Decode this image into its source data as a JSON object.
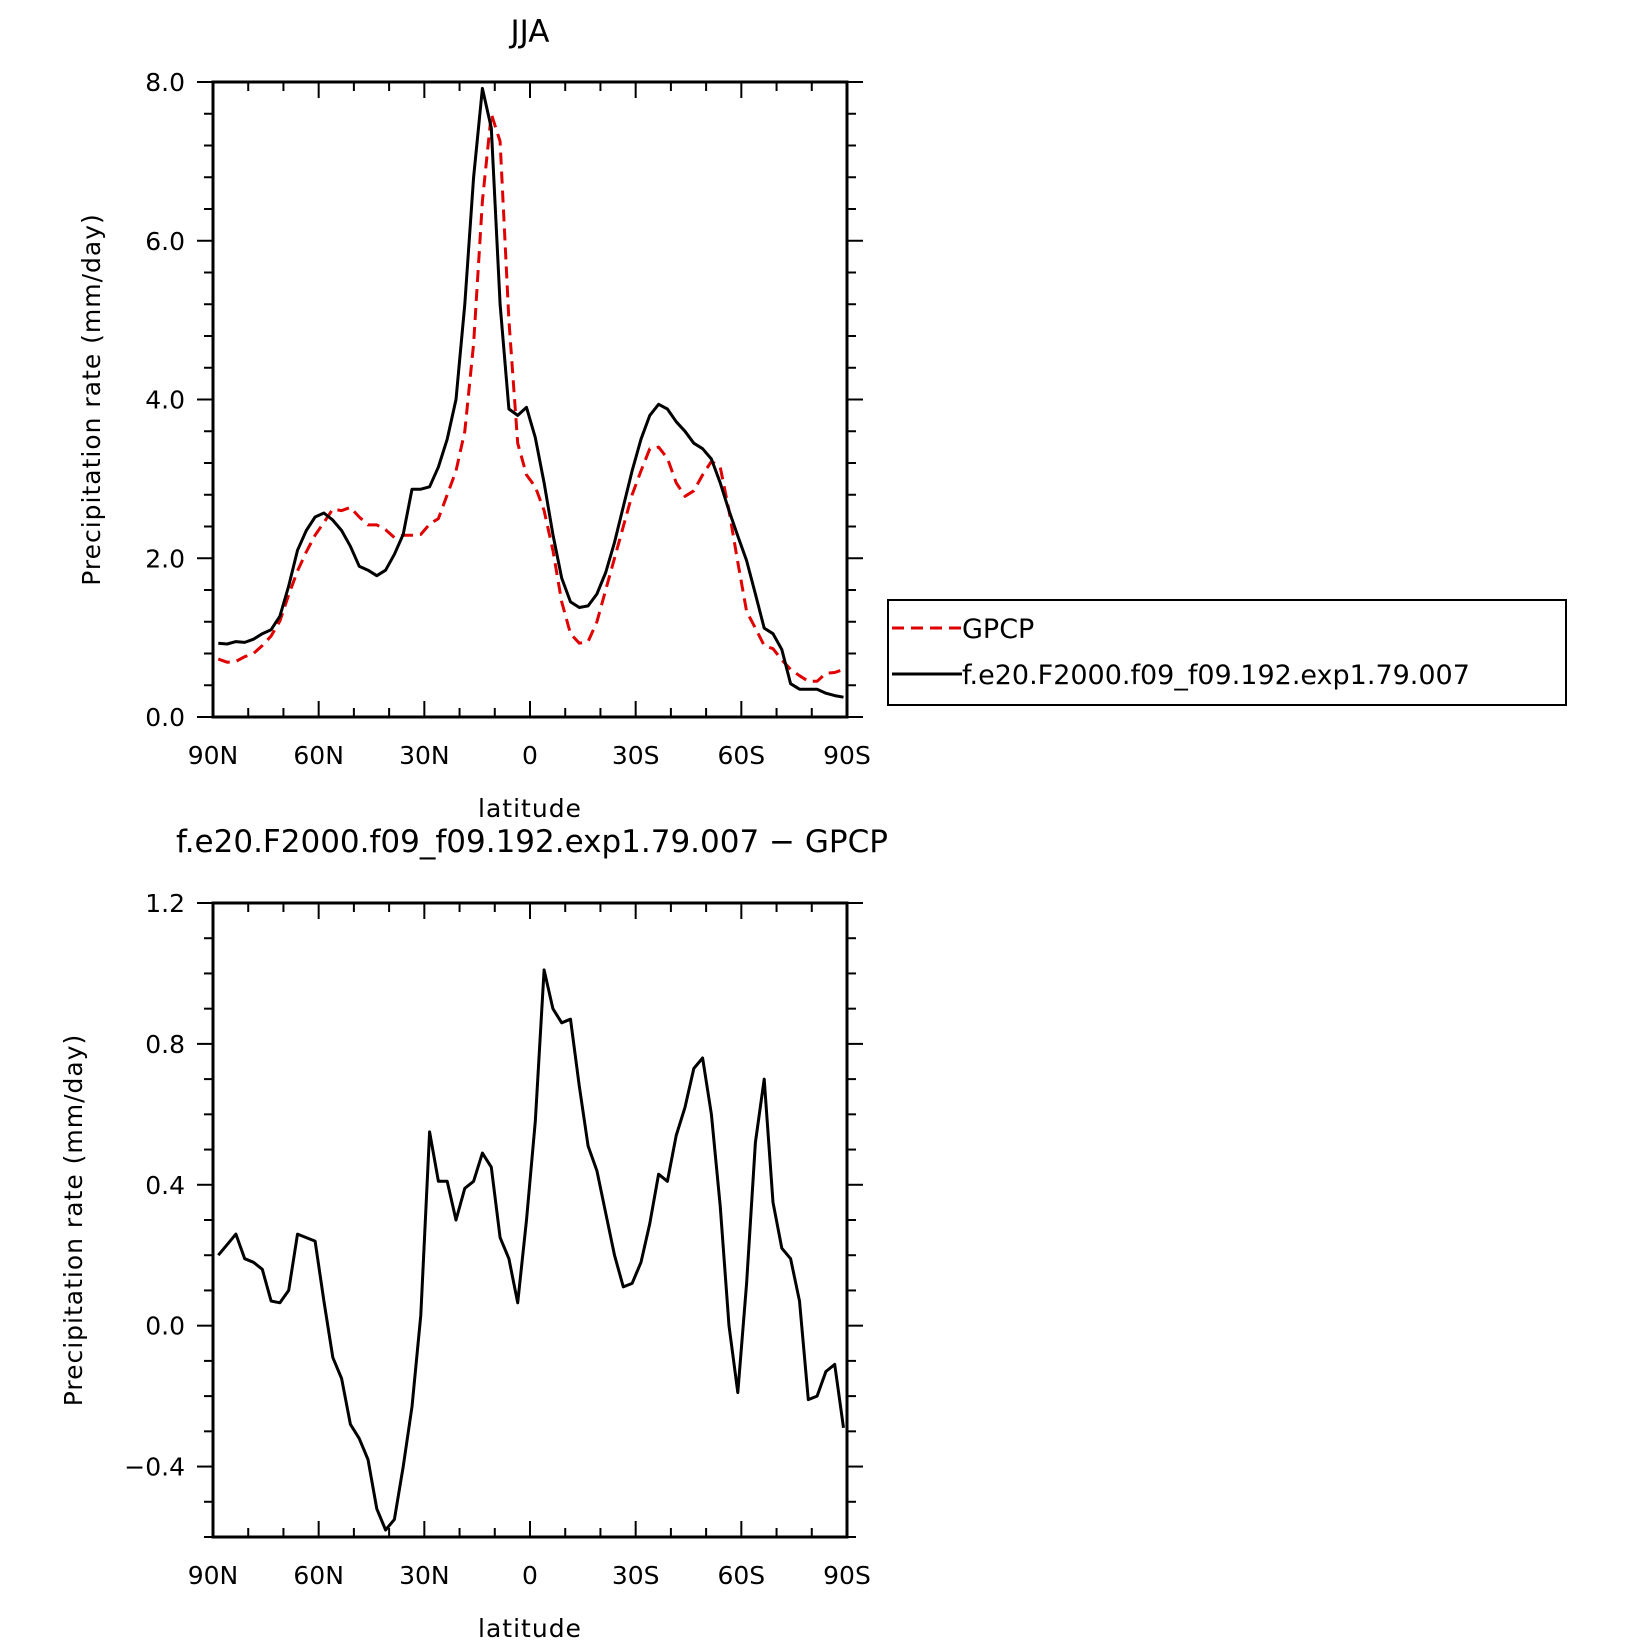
{
  "chart_data": [
    {
      "type": "line",
      "title": "JJA",
      "xlabel": "latitude",
      "ylabel": "Precipitation rate (mm/day)",
      "x_tick_labels": [
        "90N",
        "60N",
        "30N",
        "0",
        "30S",
        "60S",
        "90S"
      ],
      "y_tick_labels": [
        "0.0",
        "2.0",
        "4.0",
        "6.0",
        "8.0"
      ],
      "xlim": [
        90,
        -90
      ],
      "ylim": [
        0,
        8
      ],
      "legend_position": "right",
      "series": [
        {
          "name": "GPCP",
          "color": "#e00000",
          "dash": true,
          "x": [
            88.5,
            86,
            83.5,
            81,
            78.5,
            76,
            73.5,
            71,
            68.5,
            66,
            63.5,
            61,
            58.5,
            56,
            53.5,
            51,
            48.5,
            46,
            43.5,
            41,
            38.5,
            36,
            33.5,
            31,
            28.5,
            26,
            23.5,
            21,
            18.5,
            16,
            13.5,
            11,
            8.5,
            6,
            3.5,
            1,
            -1.5,
            -4,
            -6.5,
            -9,
            -11.5,
            -14,
            -16.5,
            -19,
            -21.5,
            -24,
            -26.5,
            -29,
            -31.5,
            -34,
            -36.5,
            -39,
            -41.5,
            -44,
            -46.5,
            -49,
            -51.5,
            -54,
            -56.5,
            -59,
            -61.5,
            -64,
            -66.5,
            -69,
            -71.5,
            -74,
            -76.5,
            -79,
            -81.5,
            -84,
            -86.5,
            -89
          ],
          "values": [
            0.73,
            0.69,
            0.7,
            0.76,
            0.8,
            0.9,
            1.02,
            1.21,
            1.54,
            1.84,
            2.08,
            2.29,
            2.45,
            2.62,
            2.6,
            2.64,
            2.52,
            2.42,
            2.42,
            2.36,
            2.26,
            2.29,
            2.29,
            2.3,
            2.43,
            2.5,
            2.8,
            3.1,
            3.6,
            4.7,
            6.5,
            7.6,
            7.25,
            5.0,
            3.45,
            3.05,
            2.9,
            2.6,
            2.1,
            1.45,
            1.05,
            0.93,
            0.95,
            1.2,
            1.6,
            2.0,
            2.4,
            2.8,
            3.1,
            3.38,
            3.4,
            3.26,
            2.95,
            2.78,
            2.85,
            3.05,
            3.22,
            3.15,
            2.6,
            1.95,
            1.33,
            1.12,
            0.9,
            0.86,
            0.72,
            0.6,
            0.52,
            0.45,
            0.45,
            0.55,
            0.56,
            0.6
          ]
        },
        {
          "name": "f.e20.F2000.f09_f09.192.exp1.79.007",
          "color": "#000000",
          "dash": false,
          "x": [
            88.5,
            86,
            83.5,
            81,
            78.5,
            76,
            73.5,
            71,
            68.5,
            66,
            63.5,
            61,
            58.5,
            56,
            53.5,
            51,
            48.5,
            46,
            43.5,
            41,
            38.5,
            36,
            33.5,
            31,
            28.5,
            26,
            23.5,
            21,
            18.5,
            16,
            13.5,
            11,
            8.5,
            6,
            3.5,
            1,
            -1.5,
            -4,
            -6.5,
            -9,
            -11.5,
            -14,
            -16.5,
            -19,
            -21.5,
            -24,
            -26.5,
            -29,
            -31.5,
            -34,
            -36.5,
            -39,
            -41.5,
            -44,
            -46.5,
            -49,
            -51.5,
            -54,
            -56.5,
            -59,
            -61.5,
            -64,
            -66.5,
            -69,
            -71.5,
            -74,
            -76.5,
            -79,
            -81.5,
            -84,
            -86.5,
            -89
          ],
          "values": [
            0.93,
            0.92,
            0.95,
            0.94,
            0.98,
            1.05,
            1.1,
            1.27,
            1.65,
            2.1,
            2.35,
            2.52,
            2.57,
            2.48,
            2.35,
            2.15,
            1.9,
            1.85,
            1.78,
            1.85,
            2.05,
            2.3,
            2.87,
            2.87,
            2.9,
            3.15,
            3.5,
            4.0,
            5.2,
            6.8,
            7.92,
            7.42,
            5.2,
            3.88,
            3.8,
            3.9,
            3.52,
            2.95,
            2.3,
            1.75,
            1.45,
            1.38,
            1.4,
            1.55,
            1.82,
            2.2,
            2.65,
            3.1,
            3.5,
            3.8,
            3.94,
            3.88,
            3.72,
            3.6,
            3.45,
            3.38,
            3.25,
            2.95,
            2.6,
            2.28,
            1.97,
            1.55,
            1.12,
            1.05,
            0.85,
            0.42,
            0.35,
            0.35,
            0.35,
            0.3,
            0.27,
            0.25
          ]
        }
      ]
    },
    {
      "type": "line",
      "title": "f.e20.F2000.f09_f09.192.exp1.79.007 − GPCP",
      "xlabel": "latitude",
      "ylabel": "Precipitation rate (mm/day)",
      "x_tick_labels": [
        "90N",
        "60N",
        "30N",
        "0",
        "30S",
        "60S",
        "90S"
      ],
      "y_tick_labels": [
        "−0.4",
        "0.0",
        "0.4",
        "0.8",
        "1.2"
      ],
      "xlim": [
        90,
        -90
      ],
      "ylim": [
        -0.6,
        1.2
      ],
      "series": [
        {
          "color": "#000000",
          "dash": false,
          "x": [
            88.5,
            86,
            83.5,
            81,
            78.5,
            76,
            73.5,
            71,
            68.5,
            66,
            63.5,
            61,
            58.5,
            56,
            53.5,
            51,
            48.5,
            46,
            43.5,
            41,
            38.5,
            36,
            33.5,
            31,
            28.5,
            26,
            23.5,
            21,
            18.5,
            16,
            13.5,
            11,
            8.5,
            6,
            3.5,
            1,
            -1.5,
            -4,
            -6.5,
            -9,
            -11.5,
            -14,
            -16.5,
            -19,
            -21.5,
            -24,
            -26.5,
            -29,
            -31.5,
            -34,
            -36.5,
            -39,
            -41.5,
            -44,
            -46.5,
            -49,
            -51.5,
            -54,
            -56.5,
            -59,
            -61.5,
            -64,
            -66.5,
            -69,
            -71.5,
            -74,
            -76.5,
            -79,
            -81.5,
            -84,
            -86.5,
            -89
          ],
          "values": [
            0.2,
            0.23,
            0.26,
            0.19,
            0.18,
            0.16,
            0.07,
            0.065,
            0.1,
            0.26,
            0.25,
            0.24,
            0.07,
            -0.09,
            -0.15,
            -0.28,
            -0.32,
            -0.38,
            -0.52,
            -0.58,
            -0.55,
            -0.4,
            -0.23,
            0.03,
            0.55,
            0.41,
            0.41,
            0.3,
            0.39,
            0.41,
            0.49,
            0.45,
            0.25,
            0.19,
            0.065,
            0.3,
            0.58,
            1.01,
            0.9,
            0.86,
            0.87,
            0.68,
            0.51,
            0.44,
            0.32,
            0.2,
            0.11,
            0.12,
            0.18,
            0.29,
            0.43,
            0.41,
            0.54,
            0.62,
            0.73,
            0.76,
            0.6,
            0.34,
            0.0,
            -0.19,
            0.12,
            0.52,
            0.7,
            0.35,
            0.22,
            0.19,
            0.07,
            -0.21,
            -0.2,
            -0.13,
            -0.11,
            -0.29
          ]
        }
      ]
    }
  ]
}
